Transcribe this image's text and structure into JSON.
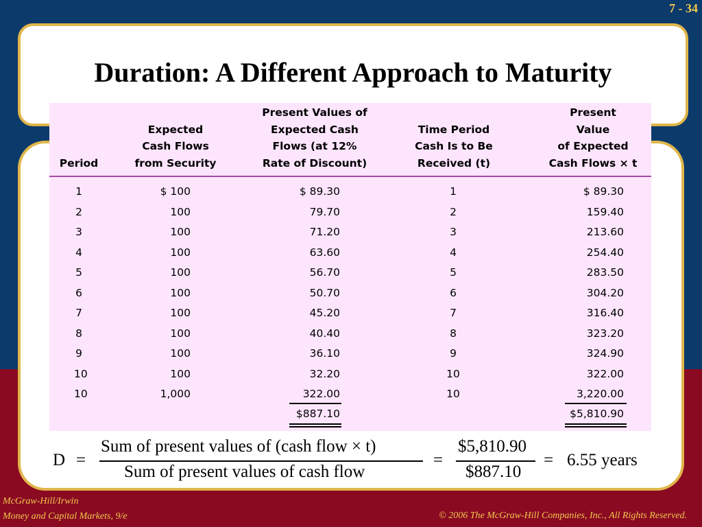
{
  "slide_number": "7 - 34",
  "title": "Duration: A Different Approach to Maturity",
  "table": {
    "headers": {
      "period": "Period",
      "flow": [
        "Expected",
        "Cash Flows",
        "from Security"
      ],
      "pv": [
        "Present Values of",
        "Expected Cash",
        "Flows (at 12%",
        "Rate of Discount)"
      ],
      "t": [
        "Time Period",
        "Cash Is to Be",
        "Received (t)"
      ],
      "pvt": [
        "Present",
        "Value",
        "of Expected",
        "Cash Flows × t"
      ]
    },
    "rows": [
      {
        "period": "1",
        "flow": "$ 100",
        "pv": "$ 89.30",
        "t": "1",
        "pvt": "$ 89.30"
      },
      {
        "period": "2",
        "flow": "100",
        "pv": "79.70",
        "t": "2",
        "pvt": "159.40"
      },
      {
        "period": "3",
        "flow": "100",
        "pv": "71.20",
        "t": "3",
        "pvt": "213.60"
      },
      {
        "period": "4",
        "flow": "100",
        "pv": "63.60",
        "t": "4",
        "pvt": "254.40"
      },
      {
        "period": "5",
        "flow": "100",
        "pv": "56.70",
        "t": "5",
        "pvt": "283.50"
      },
      {
        "period": "6",
        "flow": "100",
        "pv": "50.70",
        "t": "6",
        "pvt": "304.20"
      },
      {
        "period": "7",
        "flow": "100",
        "pv": "45.20",
        "t": "7",
        "pvt": "316.40"
      },
      {
        "period": "8",
        "flow": "100",
        "pv": "40.40",
        "t": "8",
        "pvt": "323.20"
      },
      {
        "period": "9",
        "flow": "100",
        "pv": "36.10",
        "t": "9",
        "pvt": "324.90"
      },
      {
        "period": "10",
        "flow": "100",
        "pv": "32.20",
        "t": "10",
        "pvt": "322.00"
      },
      {
        "period": "10",
        "flow": "1,000",
        "pv": "322.00",
        "t": "10",
        "pvt": "3,220.00"
      }
    ],
    "totals": {
      "pv": "$887.10",
      "pvt": "$5,810.90"
    }
  },
  "formula": {
    "lhs": "D",
    "eq1": "=",
    "numerator": "Sum of present values of (cash flow  ×  t)",
    "denominator": "Sum of present values of cash flow",
    "eq2": "=",
    "num_value": "$5,810.90",
    "den_value": "$887.10",
    "eq3": "=",
    "result": "6.55 years"
  },
  "footer": {
    "publisher": "McGraw-Hill/Irwin",
    "book": "Money and Capital Markets, 9/e",
    "copyright": "© 2006  The McGraw-Hill Companies, Inc., All Rights Reserved."
  }
}
